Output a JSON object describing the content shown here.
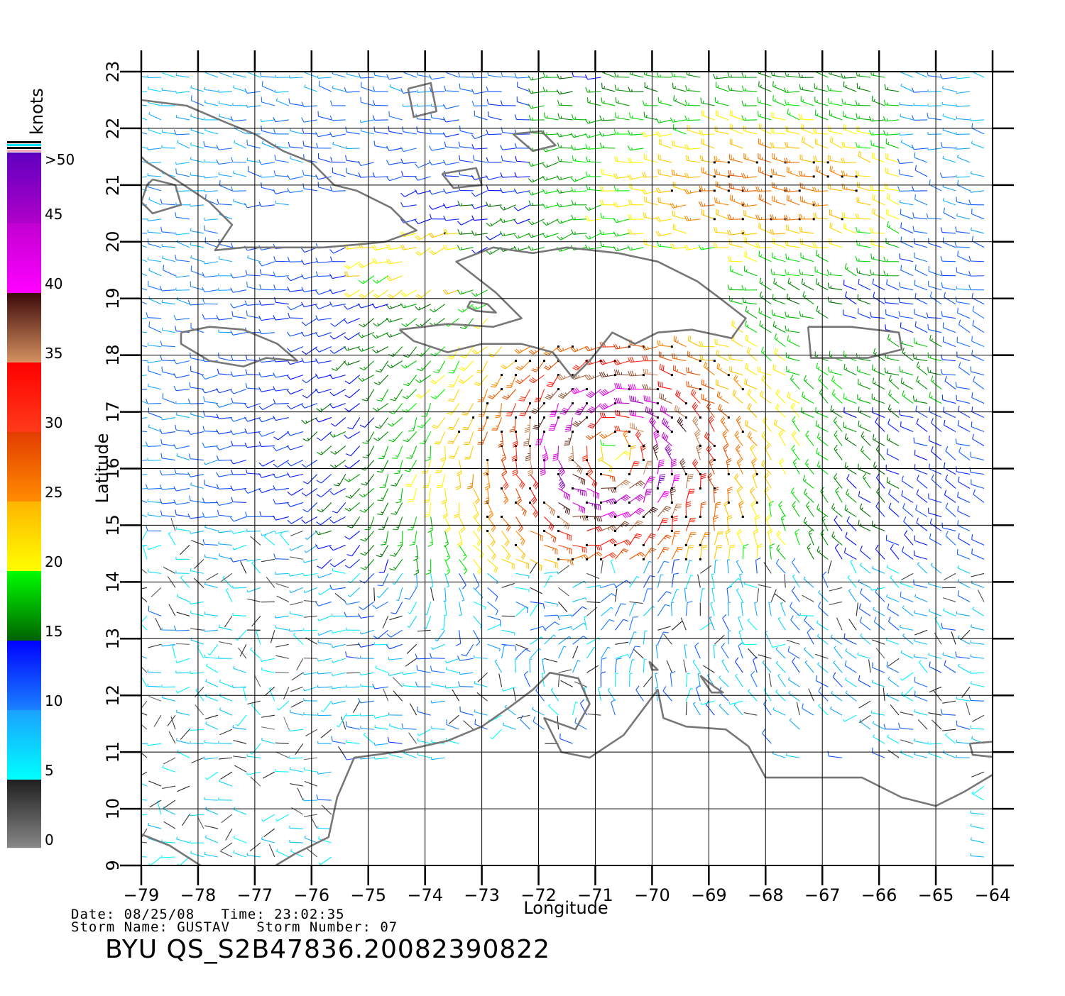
{
  "legend": {
    "unit": "knots",
    "labels": [
      ">50",
      "45",
      "40",
      "35",
      "30",
      "25",
      "20",
      "15",
      "10",
      "5",
      "0"
    ],
    "levels": [
      50,
      45,
      40,
      35,
      30,
      25,
      20,
      15,
      10,
      5,
      0
    ],
    "bands": [
      {
        "min": 0,
        "max": 5,
        "colors": [
          "#888888",
          "#1e1e1e"
        ]
      },
      {
        "min": 5,
        "max": 10,
        "colors": [
          "#00ffff",
          "#1aa0ff"
        ]
      },
      {
        "min": 10,
        "max": 15,
        "colors": [
          "#1a80ff",
          "#0000ff"
        ]
      },
      {
        "min": 15,
        "max": 20,
        "colors": [
          "#006400",
          "#00ff00"
        ]
      },
      {
        "min": 20,
        "max": 25,
        "colors": [
          "#ffff00",
          "#ffb400"
        ]
      },
      {
        "min": 25,
        "max": 30,
        "colors": [
          "#ff8c00",
          "#e23c00"
        ]
      },
      {
        "min": 30,
        "max": 35,
        "colors": [
          "#ff3a1a",
          "#ff0000"
        ]
      },
      {
        "min": 35,
        "max": 40,
        "colors": [
          "#d49060",
          "#3a0808"
        ]
      },
      {
        "min": 40,
        "max": 45,
        "colors": [
          "#ff00ff",
          "#c000d0"
        ]
      },
      {
        "min": 45,
        "max": 50,
        "colors": [
          "#b000c8",
          "#6000c0"
        ]
      }
    ]
  },
  "axes": {
    "xlabel": "Longitude",
    "ylabel": "Latitude",
    "xlim": [
      -79,
      -64
    ],
    "ylim": [
      9,
      23
    ],
    "xticks": [
      -79,
      -78,
      -77,
      -76,
      -75,
      -74,
      -73,
      -72,
      -71,
      -70,
      -69,
      -68,
      -67,
      -66,
      -65,
      -64
    ],
    "yticks": [
      9,
      10,
      11,
      12,
      13,
      14,
      15,
      16,
      17,
      18,
      19,
      20,
      21,
      22,
      23
    ],
    "grid": true
  },
  "caption": {
    "date_line": "Date: 08/25/08   Time: 23:02:35",
    "storm_line": "Storm Name: GUSTAV   Storm Number: 07",
    "file_id": "BYU QS_S2B47836.20082390822"
  },
  "storm": {
    "name": "GUSTAV",
    "center_lon": -70.7,
    "center_lat": 16.3
  },
  "colors": {
    "coastline": "#777777",
    "grid": "#000000"
  },
  "map": {
    "coastlines": [
      {
        "name": "Cuba",
        "pts": [
          [
            -79,
            22.5
          ],
          [
            -78.2,
            22.4
          ],
          [
            -77.5,
            22.1
          ],
          [
            -77,
            21.9
          ],
          [
            -76.5,
            21.6
          ],
          [
            -76,
            21.4
          ],
          [
            -75.6,
            21.0
          ],
          [
            -75.2,
            20.9
          ],
          [
            -74.6,
            20.6
          ],
          [
            -74.3,
            20.3
          ],
          [
            -74.15,
            20.2
          ],
          [
            -74.7,
            20.0
          ],
          [
            -75.2,
            19.95
          ],
          [
            -75.8,
            19.9
          ],
          [
            -76.5,
            19.9
          ],
          [
            -77.2,
            19.9
          ],
          [
            -77.7,
            19.85
          ],
          [
            -77.4,
            20.3
          ],
          [
            -77.8,
            20.7
          ],
          [
            -78.4,
            21.1
          ],
          [
            -78.9,
            21.4
          ],
          [
            -79,
            21.5
          ]
        ]
      },
      {
        "name": "Isla de la Juventud",
        "pts": [
          [
            -78.8,
            21.1
          ],
          [
            -78.4,
            21.0
          ],
          [
            -78.3,
            20.65
          ],
          [
            -78.8,
            20.5
          ],
          [
            -79,
            20.7
          ],
          [
            -78.9,
            21.0
          ],
          [
            -78.8,
            21.1
          ]
        ]
      },
      {
        "name": "Jamaica",
        "pts": [
          [
            -78.3,
            18.4
          ],
          [
            -77.8,
            18.5
          ],
          [
            -77.2,
            18.45
          ],
          [
            -76.6,
            18.2
          ],
          [
            -76.25,
            17.9
          ],
          [
            -76.8,
            17.95
          ],
          [
            -77.2,
            17.8
          ],
          [
            -77.8,
            17.9
          ],
          [
            -78.3,
            18.2
          ],
          [
            -78.3,
            18.4
          ]
        ]
      },
      {
        "name": "Hispaniola",
        "pts": [
          [
            -74.45,
            18.45
          ],
          [
            -73.6,
            18.55
          ],
          [
            -72.8,
            18.5
          ],
          [
            -72.3,
            18.65
          ],
          [
            -72.75,
            19.1
          ],
          [
            -73.45,
            19.65
          ],
          [
            -72.8,
            19.9
          ],
          [
            -72.1,
            19.8
          ],
          [
            -71.5,
            19.9
          ],
          [
            -70.6,
            19.8
          ],
          [
            -69.9,
            19.65
          ],
          [
            -69.2,
            19.3
          ],
          [
            -68.8,
            19.0
          ],
          [
            -68.35,
            18.65
          ],
          [
            -68.6,
            18.3
          ],
          [
            -69.3,
            18.45
          ],
          [
            -69.9,
            18.4
          ],
          [
            -70.3,
            18.2
          ],
          [
            -70.7,
            18.4
          ],
          [
            -71.1,
            17.9
          ],
          [
            -71.4,
            17.6
          ],
          [
            -71.75,
            18.05
          ],
          [
            -72.3,
            18.2
          ],
          [
            -73.0,
            18.2
          ],
          [
            -73.6,
            18.05
          ],
          [
            -74.2,
            18.25
          ],
          [
            -74.45,
            18.45
          ]
        ]
      },
      {
        "name": "Gonave",
        "pts": [
          [
            -73.2,
            18.95
          ],
          [
            -72.9,
            18.9
          ],
          [
            -72.75,
            18.75
          ],
          [
            -73.1,
            18.78
          ],
          [
            -73.25,
            18.85
          ],
          [
            -73.2,
            18.95
          ]
        ]
      },
      {
        "name": "Puerto Rico",
        "pts": [
          [
            -67.25,
            18.5
          ],
          [
            -66.5,
            18.5
          ],
          [
            -65.65,
            18.4
          ],
          [
            -65.6,
            18.1
          ],
          [
            -66.2,
            17.95
          ],
          [
            -67.2,
            17.95
          ],
          [
            -67.25,
            18.5
          ]
        ]
      },
      {
        "name": "Inagua",
        "pts": [
          [
            -73.7,
            21.2
          ],
          [
            -73.1,
            21.3
          ],
          [
            -73.0,
            21.0
          ],
          [
            -73.5,
            20.95
          ],
          [
            -73.7,
            21.2
          ]
        ]
      },
      {
        "name": "Turks and Caicos",
        "pts": [
          [
            -72.45,
            21.9
          ],
          [
            -71.95,
            21.95
          ],
          [
            -71.7,
            21.7
          ],
          [
            -72.1,
            21.6
          ],
          [
            -72.45,
            21.9
          ]
        ]
      },
      {
        "name": "Acklins",
        "pts": [
          [
            -74.3,
            22.7
          ],
          [
            -73.9,
            22.8
          ],
          [
            -73.8,
            22.3
          ],
          [
            -74.2,
            22.2
          ],
          [
            -74.3,
            22.7
          ]
        ]
      },
      {
        "name": "South America",
        "pts": [
          [
            -79,
            9.55
          ],
          [
            -78.5,
            9.35
          ],
          [
            -77.8,
            8.9
          ],
          [
            -77.3,
            8.95
          ],
          [
            -76.8,
            8.9
          ],
          [
            -76.3,
            9.2
          ],
          [
            -75.7,
            9.5
          ],
          [
            -75.55,
            10.2
          ],
          [
            -75.25,
            10.9
          ],
          [
            -74.5,
            11.0
          ],
          [
            -73.6,
            11.2
          ],
          [
            -73.0,
            11.45
          ],
          [
            -72.5,
            11.8
          ],
          [
            -72.1,
            12.1
          ],
          [
            -71.8,
            12.4
          ],
          [
            -71.3,
            12.3
          ],
          [
            -71.1,
            11.85
          ],
          [
            -71.35,
            11.4
          ],
          [
            -71.9,
            11.6
          ],
          [
            -71.6,
            11.0
          ],
          [
            -71.1,
            10.9
          ],
          [
            -70.5,
            11.3
          ],
          [
            -70.2,
            11.7
          ],
          [
            -69.9,
            12.1
          ],
          [
            -69.8,
            11.6
          ],
          [
            -69.4,
            11.45
          ],
          [
            -68.7,
            11.4
          ],
          [
            -68.3,
            11.1
          ],
          [
            -68.0,
            10.55
          ],
          [
            -67.0,
            10.55
          ],
          [
            -66.3,
            10.55
          ],
          [
            -65.6,
            10.2
          ],
          [
            -65.0,
            10.05
          ],
          [
            -64.5,
            10.3
          ],
          [
            -64.0,
            10.6
          ]
        ]
      },
      {
        "name": "Curacao",
        "pts": [
          [
            -69.15,
            12.35
          ],
          [
            -68.9,
            12.15
          ],
          [
            -68.75,
            12.05
          ],
          [
            -68.95,
            12.05
          ],
          [
            -69.15,
            12.35
          ]
        ]
      },
      {
        "name": "Aruba",
        "pts": [
          [
            -70.05,
            12.6
          ],
          [
            -69.9,
            12.45
          ],
          [
            -70.0,
            12.45
          ],
          [
            -70.05,
            12.6
          ]
        ]
      },
      {
        "name": "Margarita",
        "pts": [
          [
            -64.4,
            11.15
          ],
          [
            -63.8,
            11.2
          ],
          [
            -63.85,
            10.9
          ],
          [
            -64.35,
            10.95
          ],
          [
            -64.4,
            11.15
          ]
        ]
      }
    ]
  },
  "wind_field": {
    "sampling_step_deg": 0.25,
    "min_speed_knots": 0,
    "max_speed_knots": 50,
    "description": "QuikSCAT wind barbs on a 0.25-degree grid; cyclonic circulation around the storm center"
  }
}
